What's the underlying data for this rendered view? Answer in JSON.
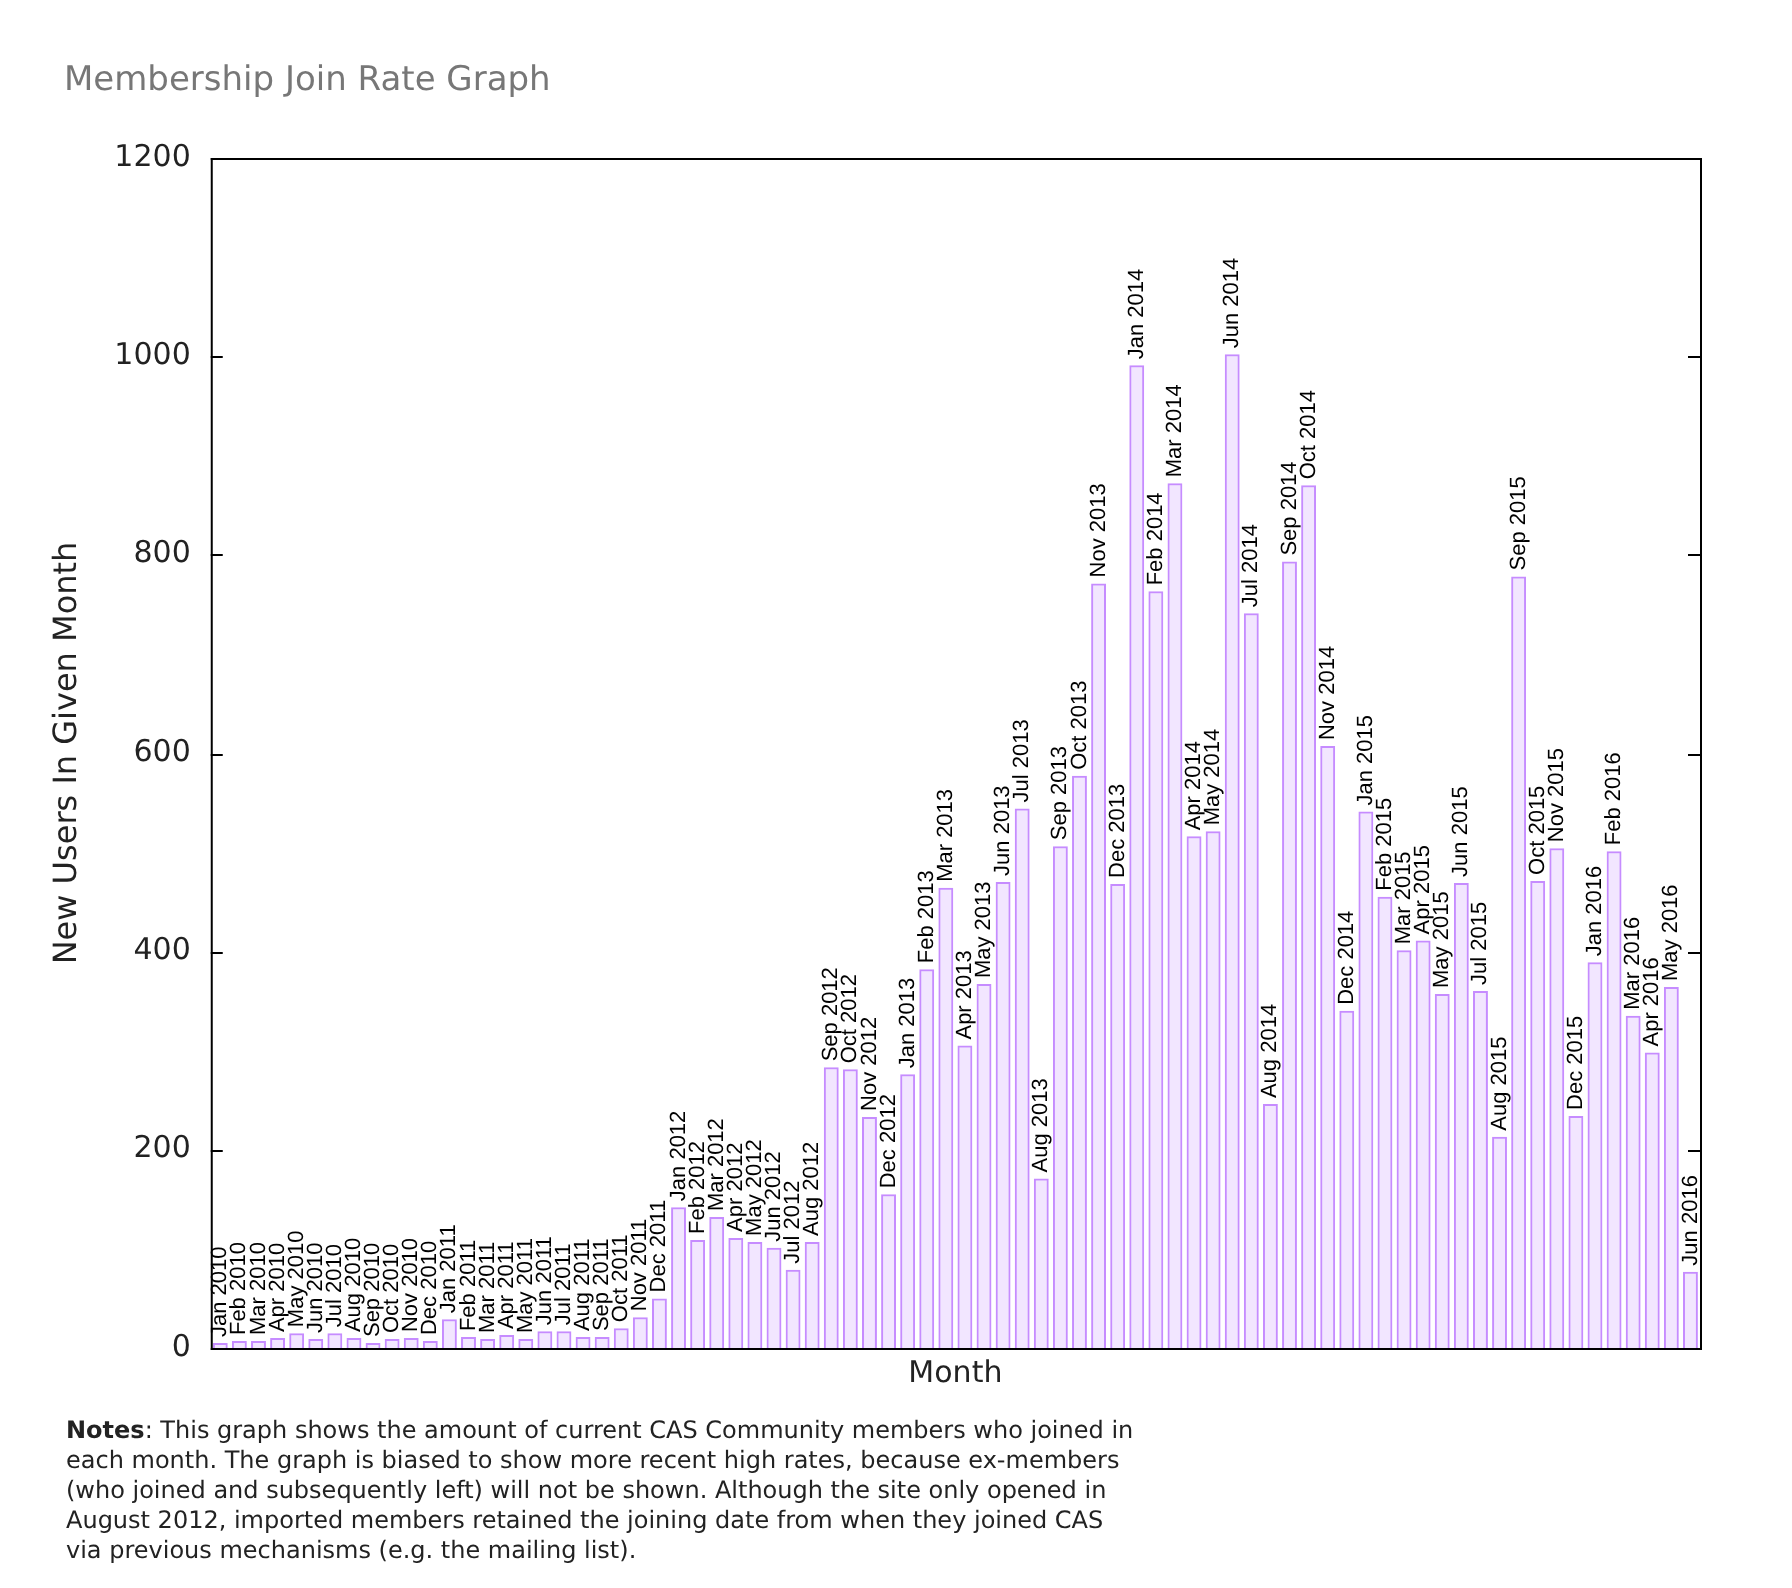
{
  "chart_data": {
    "type": "bar",
    "title": "Membership Join Rate Graph",
    "xlabel": "Month",
    "ylabel": "New Users In Given Month",
    "categories": [
      "Jan 2010",
      "Feb 2010",
      "Mar 2010",
      "Apr 2010",
      "May 2010",
      "Jun 2010",
      "Jul 2010",
      "Aug 2010",
      "Sep 2010",
      "Oct 2010",
      "Nov 2010",
      "Dec 2010",
      "Jan 2011",
      "Feb 2011",
      "Mar 2011",
      "Apr 2011",
      "May 2011",
      "Jun 2011",
      "Jul 2011",
      "Aug 2011",
      "Sep 2011",
      "Oct 2011",
      "Nov 2011",
      "Dec 2011",
      "Jan 2012",
      "Feb 2012",
      "Mar 2012",
      "Apr 2012",
      "May 2012",
      "Jun 2012",
      "Jul 2012",
      "Aug 2012",
      "Sep 2012",
      "Oct 2012",
      "Nov 2012",
      "Dec 2012",
      "Jan 2013",
      "Feb 2013",
      "Mar 2013",
      "Apr 2013",
      "May 2013",
      "Jun 2013",
      "Jul 2013",
      "Aug 2013",
      "Sep 2013",
      "Oct 2013",
      "Nov 2013",
      "Dec 2013",
      "Jan 2014",
      "Feb 2014",
      "Mar 2014",
      "Apr 2014",
      "May 2014",
      "Jun 2014",
      "Jul 2014",
      "Aug 2014",
      "Sep 2014",
      "Oct 2014",
      "Nov 2014",
      "Dec 2014",
      "Jan 2015",
      "Feb 2015",
      "Mar 2015",
      "Apr 2015",
      "May 2015",
      "Jun 2015",
      "Jul 2015",
      "Aug 2015",
      "Sep 2015",
      "Oct 2015",
      "Nov 2015",
      "Dec 2015",
      "Jan 2016",
      "Feb 2016",
      "Mar 2016",
      "Apr 2016",
      "May 2016",
      "Jun 2016"
    ],
    "values": [
      5,
      7,
      7,
      10,
      15,
      9,
      15,
      10,
      5,
      9,
      10,
      7,
      29,
      11,
      9,
      13,
      9,
      17,
      17,
      11,
      11,
      20,
      31,
      50,
      142,
      109,
      132,
      111,
      107,
      101,
      79,
      107,
      283,
      281,
      233,
      155,
      276,
      382,
      464,
      305,
      367,
      470,
      544,
      171,
      506,
      577,
      771,
      468,
      991,
      763,
      872,
      516,
      521,
      1002,
      741,
      246,
      793,
      870,
      607,
      340,
      541,
      455,
      401,
      411,
      357,
      469,
      360,
      213,
      778,
      471,
      504,
      234,
      389,
      501,
      335,
      298,
      364,
      77
    ],
    "color": "#c68cff",
    "ylim": [
      0,
      1200
    ],
    "yticks": [
      0,
      200,
      400,
      600,
      800,
      1000,
      1200
    ],
    "grid": false,
    "legend": false,
    "annotations": [
      "Notes: This graph shows the amount of current CAS Community members who joined in each month. The graph is biased to show more recent high rates, because ex-members (who joined and subsequently left) will not be shown. Although the site only opened in August 2012, imported members retained the joining date from when they joined CAS via previous mechanisms (e.g. the mailing list)."
    ]
  }
}
